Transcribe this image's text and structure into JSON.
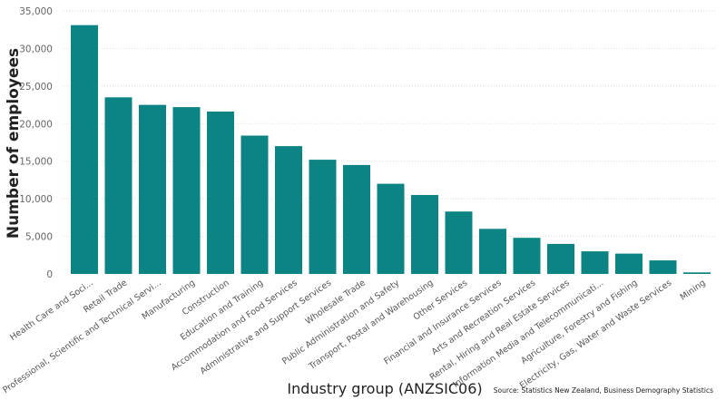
{
  "chart_data": {
    "type": "bar",
    "title": "",
    "xlabel": "Industry group (ANZSIC06)",
    "ylabel": "Number of employees",
    "source": "Source: Statistics New Zealand, Business Demography Statistics",
    "ylim": [
      0,
      35000
    ],
    "yticks": [
      "0",
      "5,000",
      "10,000",
      "15,000",
      "20,000",
      "25,000",
      "30,000",
      "35,000"
    ],
    "ytick_values": [
      0,
      5000,
      10000,
      15000,
      20000,
      25000,
      30000,
      35000
    ],
    "grid": true,
    "bar_color": "#0b8483",
    "categories": [
      "Health Care and Soci...",
      "Retail Trade",
      "Professional, Scientific and Technical Servi...",
      "Manufacturing",
      "Construction",
      "Education and Training",
      "Accommodation and Food Services",
      "Administrative and Support Services",
      "Wholesale Trade",
      "Public Administration and Safety",
      "Transport, Postal and Warehousing",
      "Other Services",
      "Financial and Insurance Services",
      "Arts and Recreation Services",
      "Rental, Hiring and Real Estate Services",
      "Information Media and Telecommunicati...",
      "Agriculture, Forestry and Fishing",
      "Electricity, Gas, Water and Waste Services",
      "Mining"
    ],
    "values": [
      33100,
      23500,
      22500,
      22200,
      21600,
      18400,
      17000,
      15200,
      14500,
      12000,
      10500,
      8300,
      6000,
      4800,
      4000,
      3000,
      2700,
      1800,
      200
    ]
  }
}
